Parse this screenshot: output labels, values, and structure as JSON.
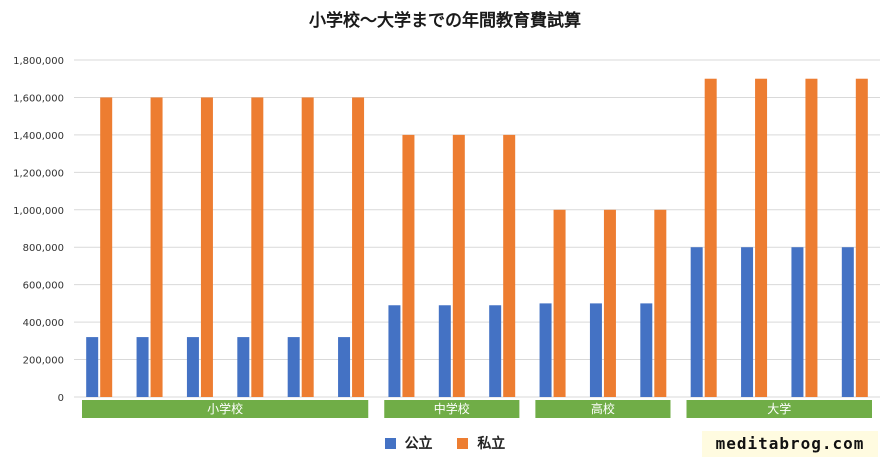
{
  "chart_data": {
    "type": "bar",
    "title": "小学校〜大学までの年間教育費試算",
    "ylim": [
      0,
      1800000
    ],
    "y_ticks": [
      "0",
      "200,000",
      "400,000",
      "600,000",
      "800,000",
      "1,000,000",
      "1,200,000",
      "1,400,000",
      "1,600,000",
      "1,800,000"
    ],
    "grid": true,
    "legend_position": "bottom",
    "groups": [
      {
        "label": "小学校",
        "count": 6
      },
      {
        "label": "中学校",
        "count": 3
      },
      {
        "label": "高校",
        "count": 3
      },
      {
        "label": "大学",
        "count": 4
      }
    ],
    "series": [
      {
        "name": "公立",
        "color": "#4472c4",
        "values": [
          320000,
          320000,
          320000,
          320000,
          320000,
          320000,
          490000,
          490000,
          490000,
          500000,
          500000,
          500000,
          800000,
          800000,
          800000,
          800000
        ]
      },
      {
        "name": "私立",
        "color": "#ed7d31",
        "values": [
          1600000,
          1600000,
          1600000,
          1600000,
          1600000,
          1600000,
          1400000,
          1400000,
          1400000,
          1000000,
          1000000,
          1000000,
          1700000,
          1700000,
          1700000,
          1700000
        ]
      }
    ],
    "group_label_color": "#70ad47"
  },
  "watermark": "meditabrog.com"
}
